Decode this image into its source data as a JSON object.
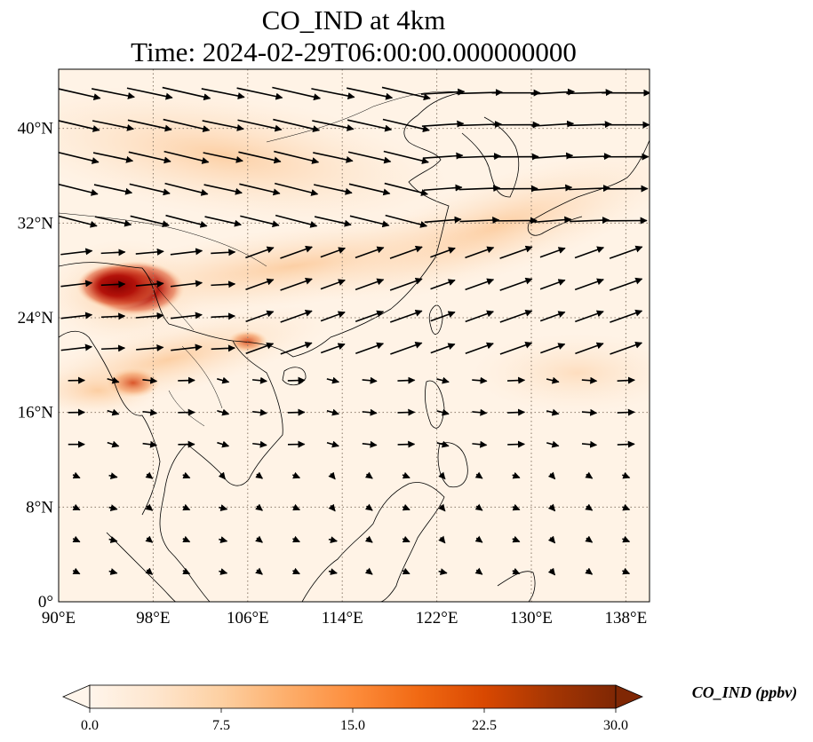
{
  "title": {
    "line1": "CO_IND at 4km",
    "line2": "Time: 2024-02-29T06:00:00.000000000"
  },
  "map": {
    "lon_range": [
      90,
      140
    ],
    "lat_range": [
      0,
      45
    ],
    "lon_ticks": [
      {
        "value": 90,
        "label": "90°E"
      },
      {
        "value": 98,
        "label": "98°E"
      },
      {
        "value": 106,
        "label": "106°E"
      },
      {
        "value": 114,
        "label": "114°E"
      },
      {
        "value": 122,
        "label": "122°E"
      },
      {
        "value": 130,
        "label": "130°E"
      },
      {
        "value": 138,
        "label": "138°E"
      }
    ],
    "lat_ticks": [
      {
        "value": 0,
        "label": "0°"
      },
      {
        "value": 8,
        "label": "8°N"
      },
      {
        "value": 16,
        "label": "16°N"
      },
      {
        "value": 24,
        "label": "24°N"
      },
      {
        "value": 32,
        "label": "32°N"
      },
      {
        "value": 40,
        "label": "40°N"
      }
    ],
    "gridlines": true,
    "gridline_style": "dotted",
    "field": "CO_IND",
    "hotspots": [
      {
        "lon": 96.5,
        "lat": 26.5,
        "value": 30
      },
      {
        "lon": 95.0,
        "lat": 26.7,
        "value": 24
      },
      {
        "lon": 96.3,
        "lat": 18.5,
        "value": 13
      },
      {
        "lon": 106.0,
        "lat": 22.0,
        "value": 8
      }
    ]
  },
  "colorbar": {
    "label": "CO_IND (ppbv)",
    "ticks": [
      "0.0",
      "7.5",
      "15.0",
      "22.5",
      "30.0"
    ],
    "min": 0,
    "max": 30,
    "extend": "both",
    "colormap": [
      "#fff5eb",
      "#fee6ce",
      "#fdd0a2",
      "#fdae6b",
      "#fd8d3c",
      "#f16913",
      "#d94801",
      "#a63603",
      "#7f2704"
    ]
  },
  "colors": {
    "land_outline": "#000000",
    "grid": "#8a7a6a",
    "vector": "#000000"
  }
}
